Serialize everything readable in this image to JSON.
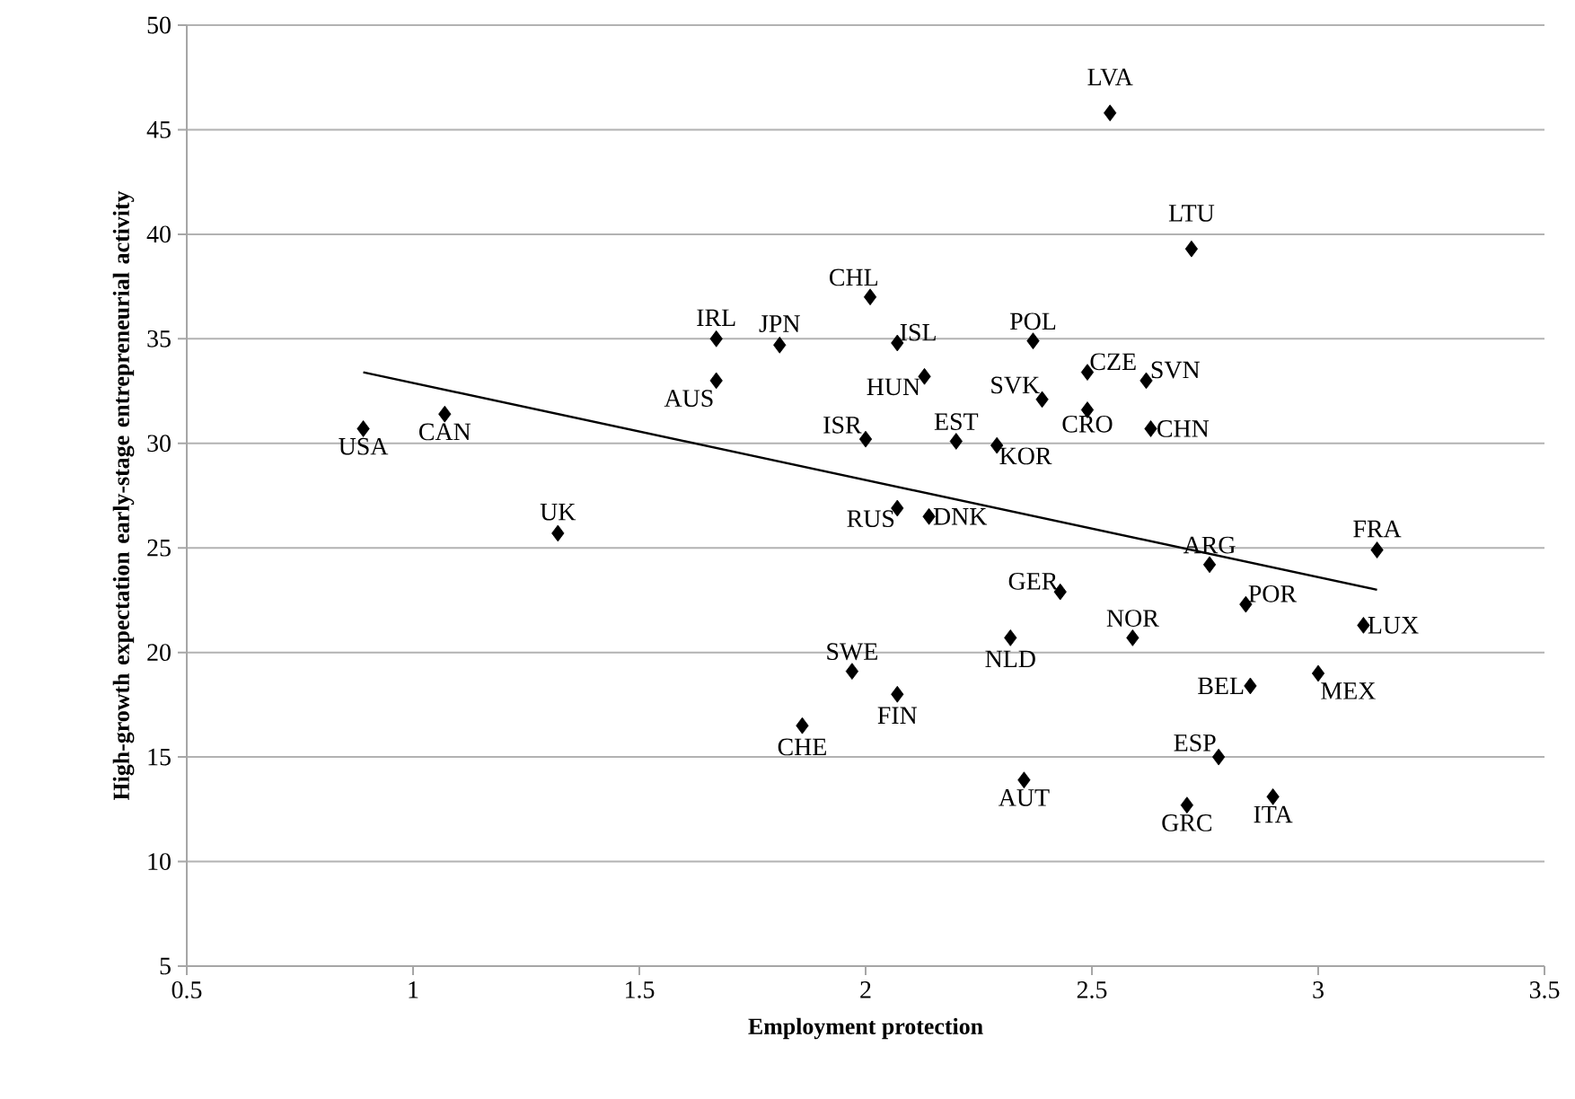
{
  "chart_data": {
    "type": "scatter",
    "xlabel": "Employment protection",
    "ylabel": "High-growth expectation early-stage entrepreneurial activity",
    "xlim": [
      0.5,
      3.5
    ],
    "ylim": [
      5,
      50
    ],
    "xticks": [
      0.5,
      1,
      1.5,
      2,
      2.5,
      3,
      3.5
    ],
    "yticks": [
      5,
      10,
      15,
      20,
      25,
      30,
      35,
      40,
      45,
      50
    ],
    "grid": "y",
    "marker": "diamond",
    "series": [
      {
        "color": "#000000",
        "x": [
          0.89,
          1.07,
          1.32,
          1.67,
          1.67,
          1.81,
          2.01,
          2.07,
          2.13,
          2.0,
          2.2,
          2.29,
          2.37,
          2.39,
          2.49,
          2.49,
          2.62,
          2.63,
          2.54,
          2.72,
          2.07,
          2.14,
          3.13,
          2.76,
          2.84,
          2.43,
          2.59,
          2.32,
          3.1,
          1.97,
          2.07,
          1.86,
          2.85,
          3.0,
          2.78,
          2.35,
          2.71,
          2.9
        ],
        "values": [
          30.7,
          31.4,
          25.7,
          35.0,
          33.0,
          34.7,
          37.0,
          34.8,
          33.2,
          30.2,
          30.1,
          29.9,
          34.9,
          32.1,
          33.4,
          31.6,
          33.0,
          30.7,
          45.8,
          39.3,
          26.9,
          26.5,
          24.9,
          24.2,
          22.3,
          22.9,
          20.7,
          20.7,
          21.3,
          19.1,
          18.0,
          16.5,
          18.4,
          19.0,
          15.0,
          13.9,
          12.7,
          13.1
        ]
      },
      {
        "type": "line",
        "color": "#000000",
        "marker": "none",
        "line_style": "solid",
        "x": [
          0.89,
          3.13
        ],
        "values": [
          33.4,
          23.0
        ]
      }
    ],
    "annotations": [
      {
        "text": "USA",
        "x": 0.89,
        "y": 30.7
      },
      {
        "text": "CAN",
        "x": 1.07,
        "y": 31.4
      },
      {
        "text": "UK",
        "x": 1.32,
        "y": 25.7
      },
      {
        "text": "IRL",
        "x": 1.67,
        "y": 35.0
      },
      {
        "text": "AUS",
        "x": 1.67,
        "y": 33.0
      },
      {
        "text": "JPN",
        "x": 1.81,
        "y": 34.7
      },
      {
        "text": "CHL",
        "x": 2.01,
        "y": 37.0
      },
      {
        "text": "ISL",
        "x": 2.07,
        "y": 34.8
      },
      {
        "text": "HUN",
        "x": 2.13,
        "y": 33.2
      },
      {
        "text": "ISR",
        "x": 2.0,
        "y": 30.2
      },
      {
        "text": "EST",
        "x": 2.2,
        "y": 30.1
      },
      {
        "text": "KOR",
        "x": 2.29,
        "y": 29.9
      },
      {
        "text": "POL",
        "x": 2.37,
        "y": 34.9
      },
      {
        "text": "SVK",
        "x": 2.39,
        "y": 32.1
      },
      {
        "text": "CZE",
        "x": 2.49,
        "y": 33.4
      },
      {
        "text": "CRO",
        "x": 2.49,
        "y": 31.6
      },
      {
        "text": "SVN",
        "x": 2.62,
        "y": 33.0
      },
      {
        "text": "CHN",
        "x": 2.63,
        "y": 30.7
      },
      {
        "text": "LVA",
        "x": 2.54,
        "y": 45.8
      },
      {
        "text": "LTU",
        "x": 2.72,
        "y": 39.3
      },
      {
        "text": "RUS",
        "x": 2.07,
        "y": 26.9
      },
      {
        "text": "DNK",
        "x": 2.14,
        "y": 26.5
      },
      {
        "text": "FRA",
        "x": 3.13,
        "y": 24.9
      },
      {
        "text": "ARG",
        "x": 2.76,
        "y": 24.2
      },
      {
        "text": "POR",
        "x": 2.84,
        "y": 22.3
      },
      {
        "text": "GER",
        "x": 2.43,
        "y": 22.9
      },
      {
        "text": "NOR",
        "x": 2.59,
        "y": 20.7
      },
      {
        "text": "NLD",
        "x": 2.32,
        "y": 20.7
      },
      {
        "text": "LUX",
        "x": 3.1,
        "y": 21.3
      },
      {
        "text": "SWE",
        "x": 1.97,
        "y": 19.1
      },
      {
        "text": "FIN",
        "x": 2.07,
        "y": 18.0
      },
      {
        "text": "CHE",
        "x": 1.86,
        "y": 16.5
      },
      {
        "text": "BEL",
        "x": 2.85,
        "y": 18.4
      },
      {
        "text": "MEX",
        "x": 3.0,
        "y": 19.0
      },
      {
        "text": "ESP",
        "x": 2.78,
        "y": 15.0
      },
      {
        "text": "AUT",
        "x": 2.35,
        "y": 13.9
      },
      {
        "text": "GRC",
        "x": 2.71,
        "y": 12.7
      },
      {
        "text": "ITA",
        "x": 2.9,
        "y": 13.1
      }
    ]
  }
}
